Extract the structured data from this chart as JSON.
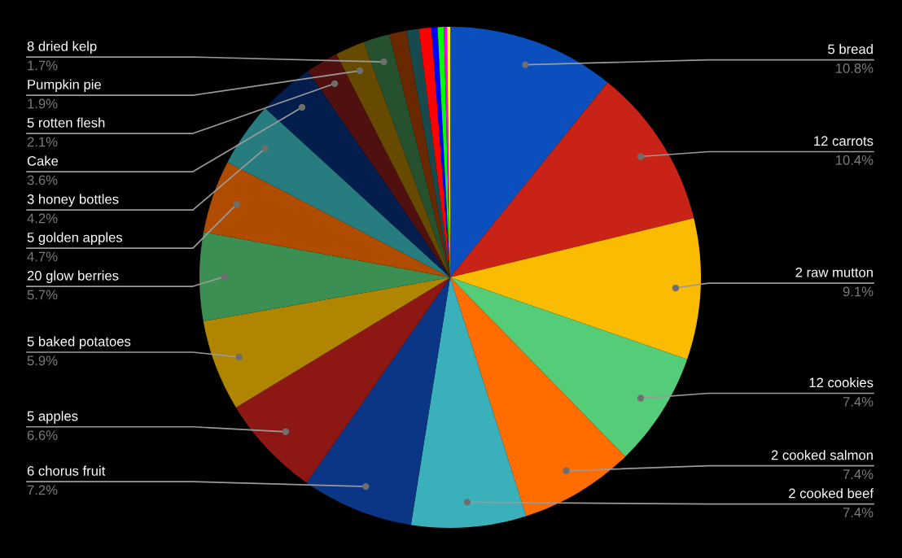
{
  "chart_data": {
    "type": "pie",
    "categories": [
      "5 bread",
      "12 carrots",
      "2 raw mutton",
      "12 cookies",
      "2 cooked salmon",
      "2 cooked beef",
      "6 chorus fruit",
      "5 apples",
      "5 baked potatoes",
      "20 glow berries",
      "5 golden apples",
      "3 honey bottles",
      "Cake",
      "5 rotten flesh",
      "Pumpkin pie",
      "8 dried kelp",
      null,
      null,
      null,
      null,
      null,
      null,
      null
    ],
    "values": [
      10.8,
      10.4,
      9.1,
      7.4,
      7.4,
      7.4,
      7.2,
      6.6,
      5.9,
      5.7,
      4.7,
      4.2,
      3.6,
      2.1,
      1.9,
      1.7,
      1.1,
      0.8,
      0.8,
      0.4,
      0.4,
      0.2,
      0.2
    ],
    "value_labels": [
      "10.8%",
      "10.4%",
      "9.1%",
      "7.4%",
      "7.4%",
      "7.4%",
      "7.2%",
      "6.6%",
      "5.9%",
      "5.7%",
      "4.7%",
      "4.2%",
      "3.6%",
      "2.1%",
      "1.9%",
      "1.7%",
      null,
      null,
      null,
      null,
      null,
      null,
      null
    ],
    "colors": [
      "#0b4fbf",
      "#c92216",
      "#fbbb00",
      "#55cc77",
      "#ff6d00",
      "#3ab0bb",
      "#0b3585",
      "#8d1712",
      "#b08500",
      "#3b8f52",
      "#b04c00",
      "#277c80",
      "#031e4d",
      "#501010",
      "#654a00",
      "#25512e",
      "#6a2800",
      "#174a4c",
      "#ff0000",
      "#0000ff",
      "#00ff00",
      "#ff00ff",
      "#ffff00"
    ],
    "legend": false
  }
}
